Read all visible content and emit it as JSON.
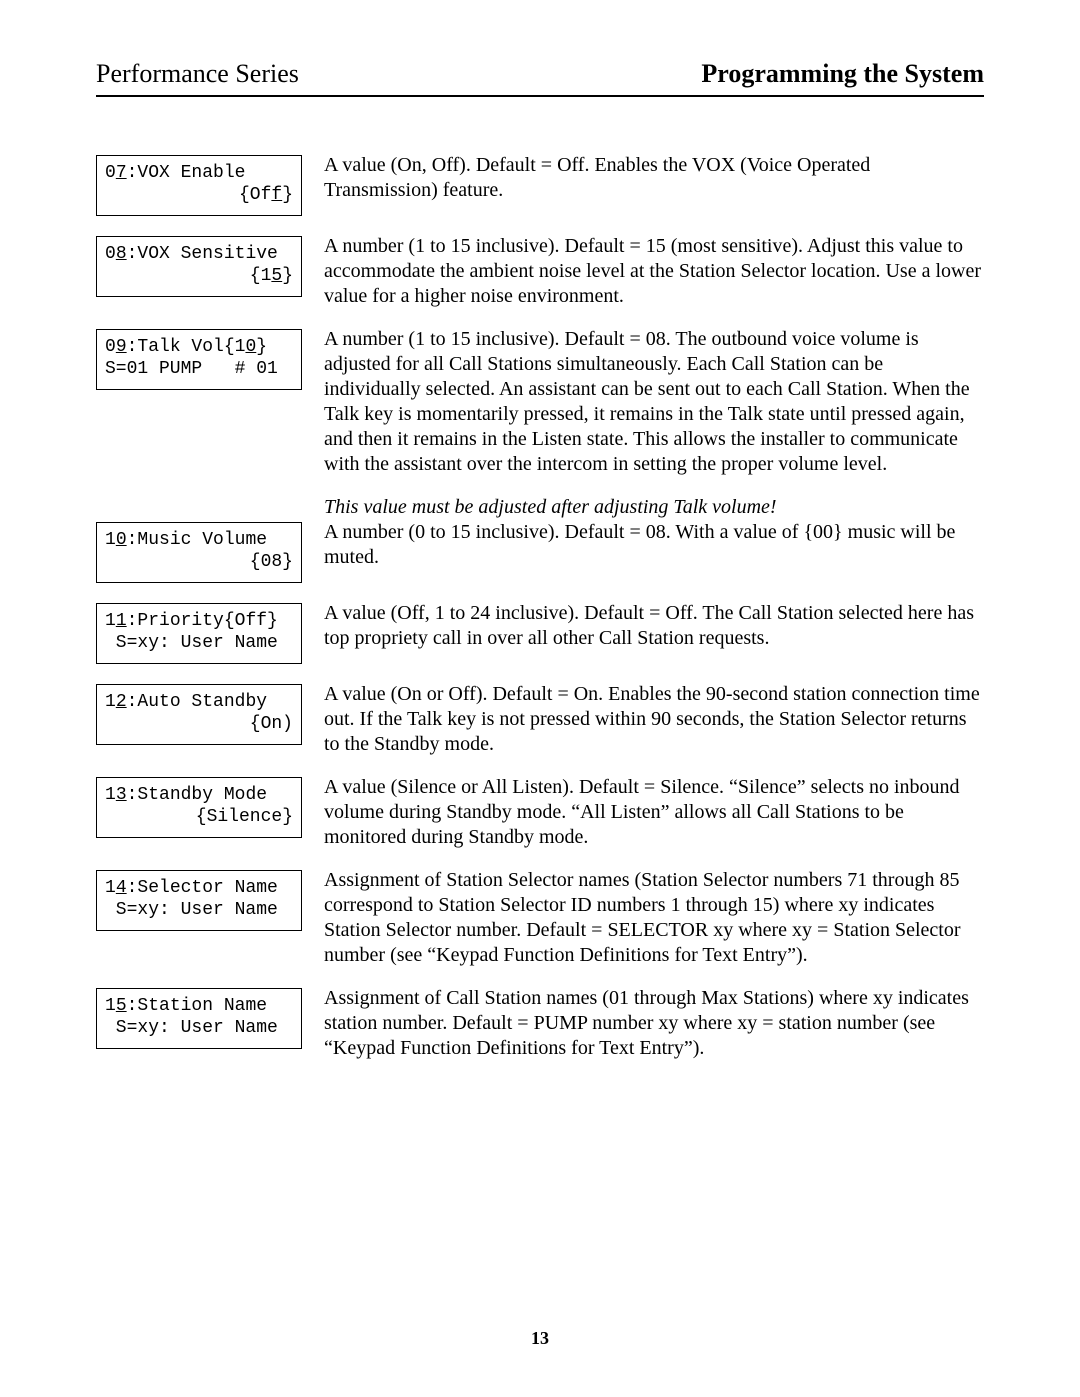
{
  "header": {
    "left": "Performance Series",
    "right": "Programming the System"
  },
  "page_number": "13",
  "items": [
    {
      "lcd": {
        "prefix": "0",
        "underlined": "7",
        "after": ":VOX Enable",
        "line2_pre": "{Of",
        "line2_u": "f",
        "line2_post": "}",
        "line2_align": "right"
      },
      "desc": "A value (On, Off).  Default = Off.  Enables the VOX (Voice Operated Transmission) feature."
    },
    {
      "lcd": {
        "prefix": "0",
        "underlined": "8",
        "after": ":VOX Sensitive",
        "line2_pre": "{1",
        "line2_u": "5",
        "line2_post": "}",
        "line2_align": "right"
      },
      "desc": "A number (1 to 15 inclusive).  Default = 15 (most sensitive).  Adjust this value to accommodate the ambient noise level at the Station Selector location.  Use a lower value for a higher noise environment."
    },
    {
      "lcd": {
        "prefix": "0",
        "underlined": "9",
        "after": ":Talk Vol{1",
        "after_u": "0",
        "after_post": "}",
        "line2_pre": "S=01 PUMP   # 01",
        "line2_u": "",
        "line2_post": "",
        "line2_align": "left"
      },
      "desc": "A number (1 to 15 inclusive).  Default = 08.  The outbound voice volume is adjusted for all Call Stations simultaneously.  Each Call Station can be individually selected.  An assistant can be sent out to each Call Station.  When the Talk key is momentarily pressed, it remains in the Talk state until pressed again, and then it remains in the Listen state.  This allows the installer to communicate with the assistant over the intercom in setting the proper volume level."
    },
    {
      "intro_italic": "This value must be adjusted after adjusting Talk volume!",
      "lcd": {
        "prefix": "1",
        "underlined": "0",
        "after": ":Music Volume",
        "line2_pre": "{08}",
        "line2_u": "",
        "line2_post": "",
        "line2_align": "right"
      },
      "desc": "A number (0 to 15 inclusive).  Default = 08.  With a value of {00} music will be muted."
    },
    {
      "lcd": {
        "prefix": "1",
        "underlined": "1",
        "after": ":Priority{Off}",
        "line2_pre": " S=xy: User Name",
        "line2_u": "",
        "line2_post": "",
        "line2_align": "left"
      },
      "desc": "A value (Off, 1 to 24 inclusive).  Default = Off.  The Call Station selected here has top propriety call in over all other Call Station requests."
    },
    {
      "lcd": {
        "prefix": "1",
        "underlined": "2",
        "after": ":Auto Standby",
        "line2_pre": "{On)",
        "line2_u": "",
        "line2_post": "",
        "line2_align": "right"
      },
      "desc": "A value (On or Off).  Default = On.  Enables the 90-second station connection time out.  If the Talk key is not pressed within 90 seconds, the Station Selector returns to the Standby mode."
    },
    {
      "lcd": {
        "prefix": "1",
        "underlined": "3",
        "after": ":Standby Mode",
        "line2_pre": "{Silence}",
        "line2_u": "",
        "line2_post": "",
        "line2_align": "right"
      },
      "desc": "A value (Silence or All Listen).  Default = Silence.  “Silence” selects no inbound volume during Standby mode.  “All Listen” allows all Call Stations to be monitored during Standby mode."
    },
    {
      "lcd": {
        "prefix": "1",
        "underlined": "4",
        "after": ":Selector Name",
        "line2_pre": " S=xy: User Name",
        "line2_u": "",
        "line2_post": "",
        "line2_align": "left"
      },
      "desc": "Assignment of Station Selector names (Station Selector numbers 71 through 85 correspond to Station Selector ID numbers 1 through 15) where xy indicates Station Selector number.  Default = SELECTOR xy where xy = Station Selector number (see “Keypad Function Definitions for Text Entry”)."
    },
    {
      "lcd": {
        "prefix": "1",
        "underlined": "5",
        "after": ":Station Name",
        "line2_pre": " S=xy: User Name",
        "line2_u": "",
        "line2_post": "",
        "line2_align": "left"
      },
      "desc": "Assignment of Call Station names (01 through Max Stations) where xy indicates station number.  Default = PUMP number xy where xy = station number (see “Keypad Function Definitions for Text Entry”)."
    }
  ]
}
